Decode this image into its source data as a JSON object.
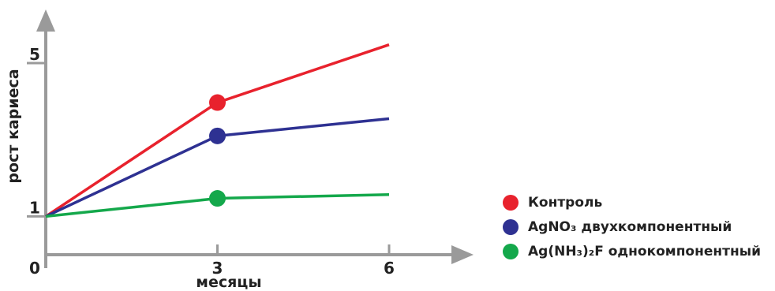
{
  "chart_data": {
    "type": "line",
    "ylabel": "рост кариеса",
    "xlabel": "месяцы",
    "x": [
      0,
      3,
      6
    ],
    "x_ticks": [
      "0",
      "3",
      "6"
    ],
    "y_ticks": [
      "1",
      "5"
    ],
    "x_range": [
      0,
      7.1
    ],
    "y_range": [
      -0.3,
      6.7
    ],
    "grid": false,
    "legend_position": "right",
    "series": [
      {
        "name": "Контроль",
        "color": "#e8222d",
        "x": [
          0,
          3,
          6
        ],
        "values": [
          1,
          3.97,
          5.48
        ],
        "marker_at": 3
      },
      {
        "name": "AgNO₃ двухкомпонентный",
        "color": "#2e3192",
        "x": [
          0,
          3,
          6
        ],
        "values": [
          1,
          3.1,
          3.55
        ],
        "marker_at": 3
      },
      {
        "name": "Ag(NH₃)₂F однокомпонентный",
        "color": "#14a84b",
        "x": [
          0,
          3,
          6
        ],
        "values": [
          1,
          1.47,
          1.57
        ],
        "marker_at": 3
      }
    ]
  }
}
